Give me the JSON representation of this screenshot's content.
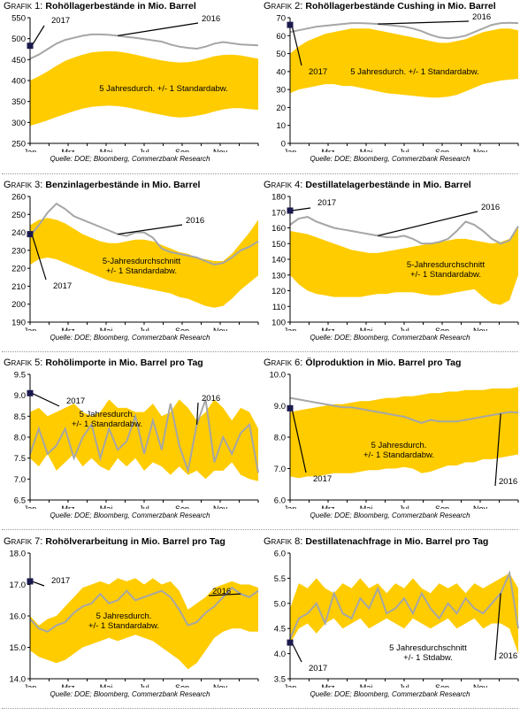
{
  "source_text": "Quelle: DOE; Bloomberg, Commerzbank Research",
  "months": [
    "Jan",
    "Mrz",
    "Mai",
    "Jul",
    "Sep",
    "Nov"
  ],
  "colors": {
    "band": "#ffcc00",
    "line2016": "#a6a6a6",
    "marker2017": "#1a1a4d",
    "axis": "#000000"
  },
  "chart_data": [
    {
      "id": "g1",
      "type": "area",
      "label_prefix": "Grafik 1:",
      "title": "Rohöllagerbestände in Mio. Barrel",
      "ylim": [
        250,
        550
      ],
      "yticks": [
        "250",
        "300",
        "350",
        "400",
        "450",
        "500",
        "550"
      ],
      "x": [
        0,
        2,
        4,
        6,
        8,
        10,
        12,
        14,
        16,
        18,
        20,
        22,
        24,
        26,
        28,
        30,
        32,
        34,
        36,
        38,
        40,
        42,
        44,
        46,
        48,
        50,
        52
      ],
      "band_upper": [
        400,
        410,
        422,
        435,
        447,
        455,
        462,
        467,
        469,
        470,
        469,
        466,
        462,
        457,
        452,
        448,
        445,
        443,
        444,
        447,
        452,
        458,
        461,
        462,
        460,
        456,
        452
      ],
      "band_lower": [
        292,
        298,
        305,
        313,
        320,
        327,
        333,
        337,
        339,
        340,
        339,
        336,
        332,
        327,
        322,
        318,
        314,
        312,
        313,
        316,
        320,
        326,
        331,
        334,
        334,
        332,
        330
      ],
      "series": [
        {
          "name": "2016",
          "values": [
            452,
            462,
            475,
            488,
            497,
            502,
            507,
            510,
            510,
            509,
            507,
            504,
            502,
            499,
            496,
            493,
            486,
            481,
            478,
            476,
            481,
            488,
            492,
            489,
            486,
            485,
            484
          ]
        }
      ],
      "point_2017": {
        "x": 0,
        "y": 483,
        "label": "2017"
      },
      "band_label": [
        "5 Jahresdurch. +/-  1 Standardabw."
      ]
    },
    {
      "id": "g2",
      "type": "area",
      "label_prefix": "Grafik 2:",
      "title": "Rohöllagerbestände Cushing in Mio. Barrel",
      "ylim": [
        0,
        70
      ],
      "yticks": [
        "0",
        "10",
        "20",
        "30",
        "40",
        "50",
        "60",
        "70"
      ],
      "x": [
        0,
        2,
        4,
        6,
        8,
        10,
        12,
        14,
        16,
        18,
        20,
        22,
        24,
        26,
        28,
        30,
        32,
        34,
        36,
        38,
        40,
        42,
        44,
        46,
        48,
        50,
        52
      ],
      "band_upper": [
        50,
        54,
        57,
        59,
        61,
        62,
        63,
        64,
        64,
        64,
        63,
        62,
        61,
        60,
        59,
        58,
        57,
        56,
        56,
        57,
        58,
        60,
        62,
        63,
        64,
        64,
        63
      ],
      "band_lower": [
        28,
        30,
        31,
        32,
        33,
        33,
        32,
        32,
        31,
        30,
        29,
        28,
        27.5,
        27,
        26.5,
        26,
        25.5,
        25.5,
        26,
        27,
        29,
        31,
        33,
        34,
        35,
        35.5,
        36
      ],
      "series": [
        {
          "name": "2016",
          "values": [
            62,
            63,
            64,
            65,
            65.5,
            66,
            66.5,
            67,
            67,
            66.8,
            66.5,
            66,
            65.5,
            65,
            64,
            62.5,
            60.5,
            59,
            58.5,
            59,
            60,
            62,
            64,
            66,
            67,
            67.2,
            67
          ]
        }
      ],
      "point_2017": {
        "x": 0,
        "y": 66,
        "label": "2017"
      },
      "band_label": [
        "5 Jahresdurch. +/-  1 Standardabw."
      ]
    },
    {
      "id": "g3",
      "type": "area",
      "label_prefix": "Grafik 3:",
      "title": "Benzinlagerbestände in Mio. Barrel",
      "ylim": [
        190,
        260
      ],
      "yticks": [
        "190",
        "200",
        "210",
        "220",
        "230",
        "240",
        "250",
        "260"
      ],
      "x": [
        0,
        2,
        4,
        6,
        8,
        10,
        12,
        14,
        16,
        18,
        20,
        22,
        24,
        26,
        28,
        30,
        32,
        34,
        36,
        38,
        40,
        42,
        44,
        46,
        48,
        50,
        52
      ],
      "band_upper": [
        244,
        247,
        248,
        247,
        245,
        242,
        239,
        237,
        235,
        234,
        234,
        235,
        236,
        236,
        235,
        233,
        231,
        229,
        228,
        226,
        225,
        224,
        224,
        228,
        234,
        240,
        247
      ],
      "band_lower": [
        222,
        225,
        226,
        225,
        223,
        221,
        219,
        217,
        215,
        213,
        212,
        211,
        210,
        209,
        208,
        207,
        206,
        204,
        203,
        201,
        199,
        198,
        199,
        203,
        208,
        212,
        216
      ],
      "series": [
        {
          "name": "2016",
          "values": [
            238,
            244,
            251,
            256,
            253,
            249,
            247,
            245,
            243,
            241,
            239,
            238,
            240,
            240,
            237,
            231,
            229,
            228,
            227,
            226,
            224,
            222,
            223,
            226,
            230,
            232,
            235
          ]
        }
      ],
      "point_2017": {
        "x": 0,
        "y": 239,
        "label": "2017"
      },
      "band_label": [
        "5-Jahresdurchschnitt",
        "+/- 1 Standardabw."
      ]
    },
    {
      "id": "g4",
      "type": "area",
      "label_prefix": "Grafik 4:",
      "title": "Destillatelagerbestände in Mio. Barrel",
      "ylim": [
        100,
        180
      ],
      "yticks": [
        "100",
        "110",
        "120",
        "130",
        "140",
        "150",
        "160",
        "170",
        "180"
      ],
      "x": [
        0,
        2,
        4,
        6,
        8,
        10,
        12,
        14,
        16,
        18,
        20,
        22,
        24,
        26,
        28,
        30,
        32,
        34,
        36,
        38,
        40,
        42,
        44,
        46,
        48,
        50,
        52
      ],
      "band_upper": [
        158,
        157,
        156,
        154,
        152,
        150,
        148,
        146,
        145,
        144,
        144,
        145,
        146,
        147,
        148,
        149,
        150,
        151,
        152,
        153,
        153,
        152,
        151,
        150,
        151,
        153,
        160
      ],
      "band_lower": [
        130,
        124,
        120,
        118,
        117,
        116,
        116,
        116,
        116,
        117,
        118,
        118,
        119,
        119,
        119,
        118,
        117,
        117,
        118,
        119,
        120,
        121,
        116,
        112,
        111,
        114,
        130
      ],
      "series": [
        {
          "name": "2016",
          "values": [
            162,
            166,
            167,
            164,
            162,
            160,
            159,
            158,
            157,
            156,
            155,
            154,
            154,
            155,
            153,
            150,
            150,
            151,
            153,
            158,
            164,
            162,
            158,
            153,
            150,
            152,
            161
          ]
        }
      ],
      "point_2017": {
        "x": 0,
        "y": 171,
        "label": "2017"
      },
      "band_label": [
        "5-Jahresdurchschnitt",
        "+/- 1 Standardabw."
      ]
    },
    {
      "id": "g5",
      "type": "area",
      "label_prefix": "Grafik 5:",
      "title": "Rohölimporte in Mio. Barrel pro Tag",
      "ylim": [
        6.5,
        9.5
      ],
      "yticks": [
        "6.5",
        "7.0",
        "7.5",
        "8.0",
        "8.5",
        "9.0",
        "9.5"
      ],
      "x": [
        0,
        2,
        4,
        6,
        8,
        10,
        12,
        14,
        16,
        18,
        20,
        22,
        24,
        26,
        28,
        30,
        32,
        34,
        36,
        38,
        40,
        42,
        44,
        46,
        48,
        50,
        52
      ],
      "band_upper": [
        8.6,
        8.7,
        8.5,
        8.6,
        8.7,
        8.8,
        8.6,
        8.5,
        8.6,
        8.9,
        8.7,
        8.7,
        8.6,
        8.6,
        8.8,
        8.5,
        8.6,
        8.9,
        8.7,
        8.4,
        8.6,
        8.9,
        8.7,
        8.4,
        8.7,
        8.6,
        8.2
      ],
      "band_lower": [
        7.5,
        7.3,
        7.6,
        7.2,
        7.4,
        7.6,
        7.3,
        7.5,
        7.3,
        7.2,
        7.5,
        7.3,
        7.5,
        7.2,
        7.4,
        7.3,
        7.1,
        7.3,
        7.1,
        7.2,
        7.0,
        7.2,
        7.2,
        7.4,
        7.1,
        7.0,
        6.95
      ],
      "series": [
        {
          "name": "2016",
          "values": [
            7.6,
            8.2,
            7.6,
            7.8,
            8.2,
            7.5,
            8.0,
            8.3,
            7.5,
            8.2,
            7.7,
            7.9,
            8.5,
            7.6,
            8.4,
            7.7,
            8.8,
            7.8,
            7.2,
            8.3,
            8.9,
            7.4,
            8.0,
            7.6,
            8.1,
            8.3,
            7.15
          ]
        }
      ],
      "point_2017": {
        "x": 0,
        "y": 9.05,
        "label": "2017"
      },
      "band_label": [
        "5 Jahresdurch.",
        "+/-  1 Standardabw."
      ]
    },
    {
      "id": "g6",
      "type": "area",
      "label_prefix": "Grafik 6:",
      "title": "Ölproduktion in Mio. Barrel pro Tag",
      "ylim": [
        6.0,
        10.0
      ],
      "yticks": [
        "6.0",
        "7.0",
        "8.0",
        "9.0",
        "10.0"
      ],
      "x": [
        0,
        2,
        4,
        6,
        8,
        10,
        12,
        14,
        16,
        18,
        20,
        22,
        24,
        26,
        28,
        30,
        32,
        34,
        36,
        38,
        40,
        42,
        44,
        46,
        48,
        50,
        52
      ],
      "band_upper": [
        8.8,
        8.85,
        8.9,
        8.95,
        9.0,
        9.05,
        9.05,
        9.1,
        9.15,
        9.15,
        9.2,
        9.25,
        9.25,
        9.3,
        9.3,
        9.35,
        9.4,
        9.4,
        9.45,
        9.45,
        9.5,
        9.5,
        9.5,
        9.55,
        9.55,
        9.55,
        9.6
      ],
      "band_lower": [
        6.75,
        6.7,
        6.75,
        6.75,
        6.8,
        6.85,
        6.85,
        6.85,
        6.9,
        6.95,
        6.95,
        7.0,
        7.0,
        7.05,
        7.0,
        6.85,
        6.9,
        7.0,
        7.1,
        7.1,
        7.2,
        7.2,
        7.3,
        7.3,
        7.35,
        7.4,
        7.45
      ],
      "series": [
        {
          "name": "2016",
          "values": [
            9.25,
            9.2,
            9.15,
            9.1,
            9.05,
            9.0,
            8.95,
            8.95,
            8.9,
            8.85,
            8.8,
            8.75,
            8.7,
            8.65,
            8.55,
            8.45,
            8.55,
            8.5,
            8.5,
            8.5,
            8.55,
            8.6,
            8.65,
            8.7,
            8.75,
            8.8,
            8.78
          ]
        }
      ],
      "point_2017": {
        "x": 0,
        "y": 8.92,
        "label": "2017"
      },
      "band_label": [
        "5 Jahresdurch.",
        "+/-  1 Standardabw."
      ]
    },
    {
      "id": "g7",
      "type": "area",
      "label_prefix": "Grafik 7:",
      "title": "Rohölverarbeitung in Mio. Barrel pro Tag",
      "ylim": [
        14.0,
        18.0
      ],
      "yticks": [
        "14.0",
        "15.0",
        "16.0",
        "17.0",
        "18.0"
      ],
      "x": [
        0,
        2,
        4,
        6,
        8,
        10,
        12,
        14,
        16,
        18,
        20,
        22,
        24,
        26,
        28,
        30,
        32,
        34,
        36,
        38,
        40,
        42,
        44,
        46,
        48,
        50,
        52
      ],
      "band_upper": [
        16.0,
        15.7,
        15.9,
        16.0,
        16.3,
        16.6,
        16.9,
        17.0,
        17.1,
        17.0,
        17.2,
        17.1,
        17.2,
        17.0,
        17.2,
        17.0,
        17.1,
        16.8,
        16.2,
        16.4,
        16.6,
        16.9,
        17.0,
        17.1,
        17.0,
        17.0,
        16.9
      ],
      "band_lower": [
        14.9,
        14.7,
        14.6,
        14.5,
        14.6,
        14.8,
        15.0,
        15.1,
        15.2,
        15.3,
        15.2,
        15.3,
        15.4,
        15.3,
        15.2,
        15.0,
        14.8,
        14.6,
        14.3,
        14.5,
        14.9,
        15.3,
        15.5,
        15.6,
        15.6,
        15.5,
        15.5
      ],
      "series": [
        {
          "name": "2016",
          "values": [
            15.9,
            15.6,
            15.5,
            15.7,
            15.8,
            16.1,
            16.3,
            16.4,
            16.7,
            16.4,
            16.5,
            16.8,
            16.5,
            16.6,
            16.7,
            16.8,
            16.6,
            16.2,
            15.7,
            15.8,
            16.1,
            16.3,
            16.6,
            16.9,
            16.7,
            16.6,
            16.8
          ]
        }
      ],
      "point_2017": {
        "x": 0,
        "y": 17.1,
        "label": "2017"
      },
      "band_label": [
        "5 Jahresdurch.",
        "+/-  1 Standardabw."
      ]
    },
    {
      "id": "g8",
      "type": "area",
      "label_prefix": "Grafik 8:",
      "title": "Destillatenachfrage in Mio. Barrel pro Tag",
      "ylim": [
        3.5,
        6.0
      ],
      "yticks": [
        "3.5",
        "4.0",
        "4.5",
        "5.0",
        "5.5",
        "6.0"
      ],
      "x": [
        0,
        2,
        4,
        6,
        8,
        10,
        12,
        14,
        16,
        18,
        20,
        22,
        24,
        26,
        28,
        30,
        32,
        34,
        36,
        38,
        40,
        42,
        44,
        46,
        48,
        50,
        52
      ],
      "band_upper": [
        4.9,
        5.4,
        5.3,
        5.5,
        5.3,
        5.2,
        5.4,
        5.3,
        5.5,
        5.3,
        5.4,
        5.2,
        5.4,
        5.3,
        5.5,
        5.3,
        5.2,
        5.4,
        5.3,
        5.4,
        5.2,
        5.4,
        5.3,
        5.4,
        5.5,
        5.6,
        5.3
      ],
      "band_lower": [
        4.2,
        4.5,
        4.6,
        4.4,
        4.6,
        4.7,
        4.5,
        4.6,
        4.7,
        4.5,
        4.6,
        4.7,
        4.6,
        4.5,
        4.7,
        4.6,
        4.5,
        4.6,
        4.7,
        4.5,
        4.6,
        4.7,
        4.5,
        4.6,
        4.6,
        4.5,
        4.0
      ],
      "series": [
        {
          "name": "2016",
          "values": [
            4.3,
            4.7,
            4.8,
            5.0,
            4.6,
            5.2,
            4.8,
            4.7,
            5.1,
            4.9,
            5.3,
            4.8,
            4.9,
            5.1,
            4.8,
            5.2,
            4.9,
            4.7,
            5.0,
            4.8,
            5.1,
            4.9,
            4.8,
            5.0,
            5.2,
            5.6,
            4.5
          ]
        }
      ],
      "point_2017": {
        "x": 0,
        "y": 4.22,
        "label": "2017"
      },
      "band_label": [
        "5 Jahresdurchschnitt",
        "+/- 1 Stdabw."
      ]
    }
  ]
}
